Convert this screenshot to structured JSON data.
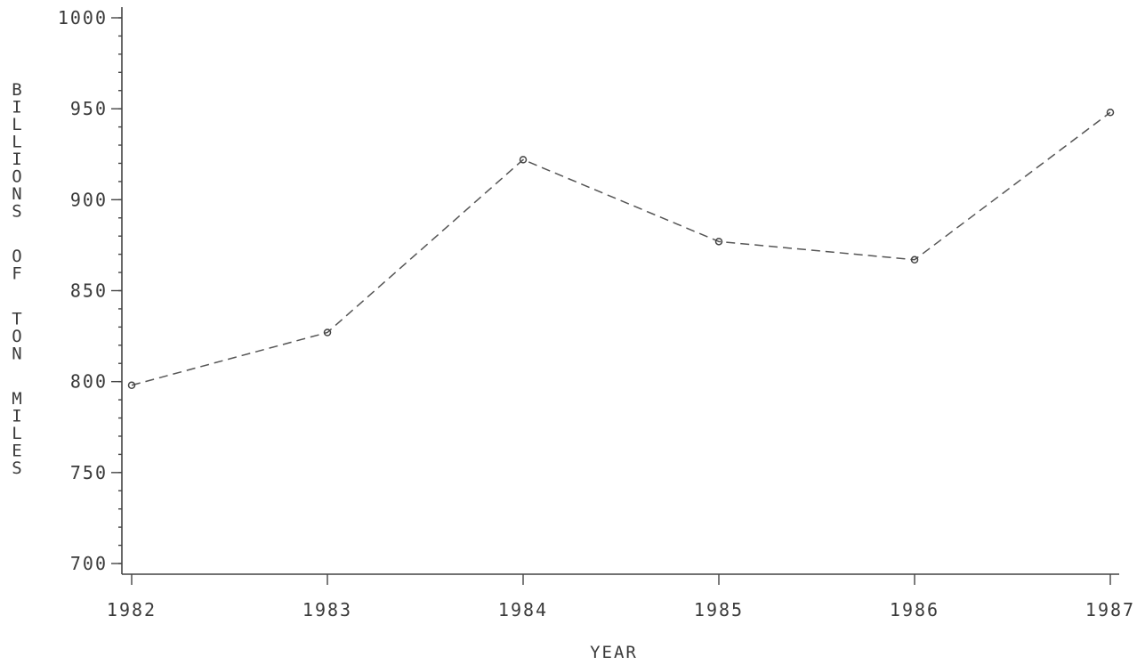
{
  "chart_data": {
    "type": "line",
    "title": "",
    "xlabel": "YEAR",
    "ylabel": "BILLIONS OF TON MILES",
    "categories": [
      "1982",
      "1983",
      "1984",
      "1985",
      "1986",
      "1987"
    ],
    "series": [
      {
        "values": [
          798,
          827,
          922,
          877,
          867,
          948
        ],
        "color": "#555555",
        "line_style": "dashed",
        "marker": "circle"
      }
    ],
    "ylim": [
      700,
      1000
    ],
    "yticks": [
      700,
      750,
      800,
      850,
      900,
      950,
      1000
    ],
    "y_minor_step": 10,
    "grid": false,
    "legend": "none"
  }
}
